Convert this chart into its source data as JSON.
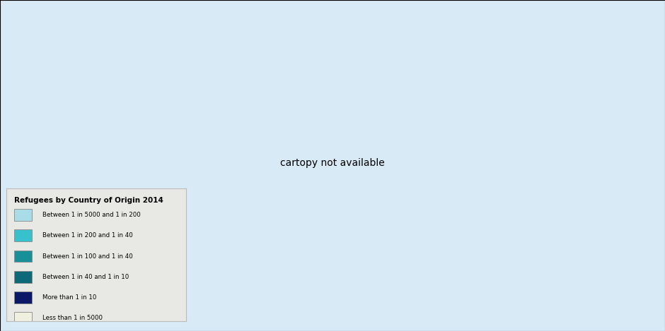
{
  "title": "Refugees by Country of Origin 2014",
  "ocean_color": "#d8eaf5",
  "land_default_color": "#eef5e0",
  "land_border_color": "#ffffff",
  "graticule_color": "#c0d8e8",
  "categories": [
    "Between 1 in 5000 and 1 in 200",
    "Between 1 in 200 and 1 in 40",
    "Between 1 in 100 and 1 in 40",
    "Between 1 in 40 and 1 in 10",
    "More than 1 in 10",
    "Less than 1 in 5000"
  ],
  "colors": [
    "#a8dde8",
    "#38c0cc",
    "#189098",
    "#0d6878",
    "#0a1868",
    "#f0f0e0"
  ],
  "country_colors": {
    "Syria": "#0a1868",
    "Iraq": "#0a1868",
    "Mauritania": "#0a1868",
    "Afghanistan": "#189098",
    "Sudan": "#189098",
    "Somalia": "#0d6878",
    "South Sudan": "#0d6878",
    "Central African Republic": "#0d6878",
    "Eritrea": "#0d6878",
    "Democratic Republic of the Congo": "#38c0cc",
    "Congo": "#38c0cc",
    "Mali": "#38c0cc",
    "Egypt": "#38c0cc",
    "Jordan": "#38c0cc",
    "W. Sahara": "#a8dde8",
    "Colombia": "#a8dde8",
    "Myanmar": "#a8dde8",
    "Chad": "#a8dde8",
    "Ethiopia": "#a8dde8",
    "Nigeria": "#a8dde8",
    "Uganda": "#a8dde8",
    "Rwanda": "#a8dde8",
    "Burundi": "#a8dde8",
    "Pakistan": "#a8dde8",
    "Libya": "#a8dde8",
    "Tunisia": "#a8dde8",
    "Morocco": "#a8dde8",
    "Algeria": "#a8dde8",
    "Senegal": "#a8dde8",
    "Guinea": "#a8dde8",
    "Sierra Leone": "#a8dde8",
    "Ivory Coast": "#a8dde8",
    "Liberia": "#a8dde8",
    "Ghana": "#a8dde8",
    "Cameroon": "#a8dde8",
    "Tanzania": "#a8dde8",
    "Mozambique": "#a8dde8",
    "Zimbabwe": "#a8dde8",
    "Zambia": "#a8dde8",
    "Angola": "#a8dde8",
    "Sri Lanka": "#a8dde8",
    "Bangladesh": "#a8dde8",
    "Vietnam": "#a8dde8",
    "Cambodia": "#a8dde8",
    "Laos": "#a8dde8",
    "Indonesia": "#a8dde8",
    "Philippines": "#a8dde8",
    "Bhutan": "#a8dde8",
    "Nepal": "#a8dde8",
    "Iran": "#a8dde8",
    "Turkey": "#a8dde8",
    "Lebanon": "#a8dde8",
    "Yemen": "#a8dde8",
    "Kenya": "#a8dde8",
    "Burkina Faso": "#a8dde8",
    "Niger": "#a8dde8",
    "Haiti": "#a8dde8",
    "Cuba": "#a8dde8",
    "Venezuela": "#a8dde8",
    "Ukraine": "#a8dde8",
    "Russia": "#a8dde8",
    "Georgia": "#a8dde8",
    "China": "#a8dde8",
    "North Korea": "#a8dde8",
    "Albania": "#a8dde8",
    "Kosovo": "#a8dde8",
    "Serbia": "#a8dde8",
    "Bosnia and Herz.": "#a8dde8",
    "Guatemala": "#a8dde8",
    "Honduras": "#a8dde8",
    "El Salvador": "#a8dde8",
    "Dominican Rep.": "#a8dde8",
    "Palestine": "#38c0cc"
  }
}
